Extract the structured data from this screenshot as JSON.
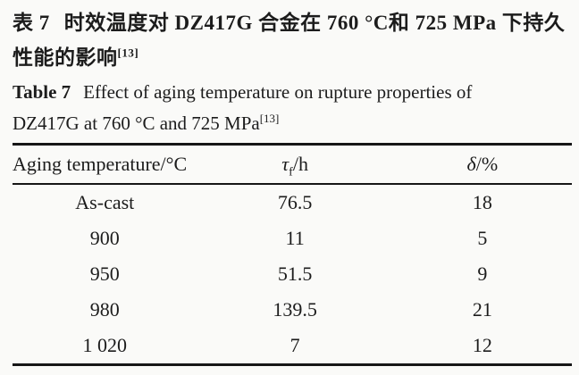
{
  "page": {
    "background": "#fafaf8",
    "text_color": "#1c1c1c"
  },
  "caption_zh": {
    "label": "表 7",
    "line1": "时效温度对 DZ417G 合金在 760 °C和 725 MPa 下持久",
    "line2": "性能的影响",
    "reference": "[13]"
  },
  "caption_en": {
    "label": "Table 7",
    "line1": "Effect of aging temperature on rupture properties of",
    "line2": "DZ417G at 760 °C and 725 MPa",
    "reference": "[13]"
  },
  "table": {
    "columns": [
      {
        "label": "Aging temperature/°C"
      },
      {
        "symbol": "τ",
        "sub": "f",
        "unit": "/h"
      },
      {
        "symbol": "δ",
        "unit": "/%"
      }
    ],
    "rows": [
      [
        "As-cast",
        "76.5",
        "18"
      ],
      [
        "900",
        "11",
        "5"
      ],
      [
        "950",
        "51.5",
        "9"
      ],
      [
        "980",
        "139.5",
        "21"
      ],
      [
        "1 020",
        "7",
        "12"
      ]
    ]
  },
  "chart_data": {
    "type": "table",
    "title": "Effect of aging temperature on rupture properties of DZ417G at 760 °C and 725 MPa",
    "columns": [
      "Aging temperature/°C",
      "τf/h",
      "δ/%"
    ],
    "rows": [
      [
        "As-cast",
        76.5,
        18
      ],
      [
        "900",
        11,
        5
      ],
      [
        "950",
        51.5,
        9
      ],
      [
        "980",
        139.5,
        21
      ],
      [
        "1 020",
        7,
        12
      ]
    ]
  }
}
